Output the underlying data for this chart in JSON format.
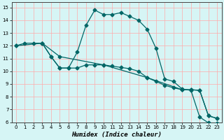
{
  "xlabel": "Humidex (Indice chaleur)",
  "bg_color": "#d6f5f5",
  "grid_color": "#ffaaaa",
  "line_color": "#006666",
  "marker_color": "#006666",
  "xlim": [
    -0.5,
    23.5
  ],
  "ylim": [
    6,
    15.4
  ],
  "xticks": [
    0,
    1,
    2,
    3,
    4,
    5,
    6,
    7,
    8,
    9,
    10,
    11,
    12,
    13,
    14,
    15,
    16,
    17,
    18,
    19,
    20,
    21,
    22,
    23
  ],
  "yticks": [
    6,
    7,
    8,
    9,
    10,
    11,
    12,
    13,
    14,
    15
  ],
  "line1_x": [
    0,
    1,
    2,
    3,
    4,
    5,
    6,
    7,
    8,
    9,
    10,
    11,
    12,
    13,
    14,
    15,
    16,
    17,
    18,
    19,
    20,
    21,
    22,
    23
  ],
  "line1_y": [
    12.0,
    12.2,
    12.2,
    12.2,
    11.15,
    10.25,
    10.25,
    11.5,
    13.6,
    14.8,
    14.45,
    14.45,
    14.6,
    14.3,
    14.0,
    13.3,
    11.8,
    9.4,
    9.2,
    8.6,
    8.5,
    6.4,
    5.95,
    5.9
  ],
  "line2_x": [
    0,
    3,
    5,
    10,
    15,
    19,
    20,
    21,
    22,
    23
  ],
  "line2_y": [
    12.0,
    12.2,
    11.15,
    10.5,
    9.5,
    8.55,
    8.55,
    8.5,
    6.5,
    6.3
  ],
  "line3_x": [
    3,
    4,
    5,
    6,
    7,
    8,
    9,
    10,
    11,
    12,
    13,
    14,
    15,
    16,
    17,
    18,
    19,
    20,
    21,
    22,
    23
  ],
  "line3_y": [
    12.2,
    11.15,
    10.25,
    10.25,
    10.25,
    10.5,
    10.5,
    10.5,
    10.4,
    10.3,
    10.2,
    10.0,
    9.5,
    9.2,
    8.9,
    8.7,
    8.55,
    8.55,
    8.5,
    6.5,
    6.3
  ]
}
